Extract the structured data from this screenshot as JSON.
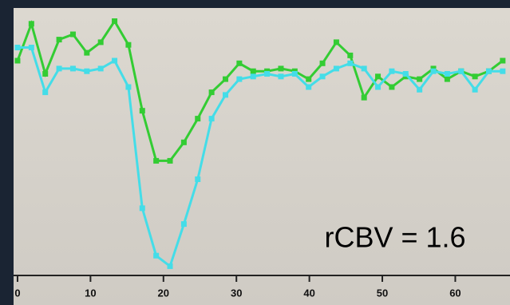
{
  "chart_data": {
    "type": "line",
    "annotation": "rCBV = 1.6",
    "x": [
      0,
      1.9,
      3.8,
      5.7,
      7.6,
      9.5,
      11.4,
      13.3,
      15.2,
      17.1,
      19,
      20.9,
      22.8,
      24.7,
      26.6,
      28.5,
      30.4,
      32.3,
      34.2,
      36.1,
      38,
      39.9,
      41.8,
      43.7,
      45.6,
      47.5,
      49.4,
      51.3,
      53.2,
      55.1,
      57,
      58.9,
      60.8,
      62.7,
      64.6,
      66.5
    ],
    "series": [
      {
        "color": "#33cc33",
        "values": [
          80,
          94,
          75,
          88,
          90,
          83,
          87,
          95,
          86,
          61,
          42,
          42,
          49,
          58,
          68,
          73,
          79,
          76,
          76,
          77,
          76,
          73,
          79,
          87,
          82,
          66,
          74,
          70,
          74,
          73,
          77,
          73,
          76,
          74,
          76,
          80
        ]
      },
      {
        "color": "#44dde8",
        "values": [
          85,
          85,
          68,
          77,
          77,
          76,
          77,
          80,
          70,
          24,
          6,
          2,
          18,
          35,
          58,
          67,
          73,
          74,
          75,
          74,
          75,
          70,
          74,
          77,
          79,
          77,
          70,
          76,
          75,
          69,
          76,
          75,
          76,
          69,
          76,
          76
        ]
      }
    ],
    "xlim": [
      -0.5,
      67.5
    ],
    "xticks": [
      0,
      10,
      20,
      30,
      40,
      50,
      60
    ],
    "ylim": [
      0,
      100
    ]
  }
}
